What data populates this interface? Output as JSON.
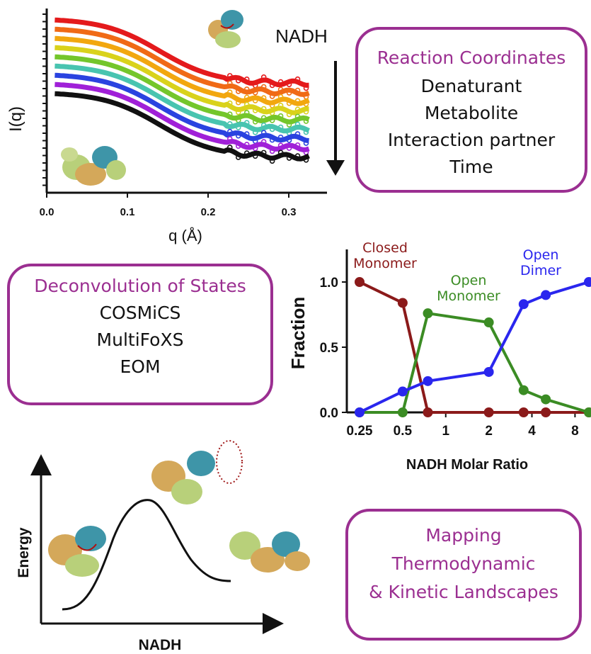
{
  "colors": {
    "accent": "#9b2f91",
    "red": "#e41a1c",
    "orange": "#f06a16",
    "amber": "#f2a70f",
    "yellow": "#d9d21b",
    "lime": "#74c62b",
    "teal": "#48c4b0",
    "blue": "#2a43e0",
    "violet": "#a020d8",
    "black": "#111111",
    "closed_monomer": "#8b1a1a",
    "open_monomer": "#3b8c24",
    "open_dimer": "#2a26ee",
    "protein_tan": "#d4a85a",
    "protein_green": "#b8d07a",
    "protein_teal": "#3e95a8"
  },
  "saxs_panel": {
    "ylabel": "I(q)",
    "xlabel": "q (Å)",
    "x_ticks": [
      "0.0",
      "0.1",
      "0.2",
      "0.3"
    ],
    "arrow_label": "NADH"
  },
  "reaction_box": {
    "title": "Reaction Coordinates",
    "items": [
      "Denaturant",
      "Metabolite",
      "Interaction partner",
      "Time"
    ]
  },
  "deconv_box": {
    "title": "Deconvolution of States",
    "items": [
      "COSMiCS",
      "MultiFoXS",
      "EOM"
    ]
  },
  "mapping_box": {
    "lines": [
      "Mapping",
      "Thermodynamic",
      "& Kinetic Landscapes"
    ]
  },
  "energy_panel": {
    "ylabel": "Energy",
    "xlabel": "NADH"
  },
  "chart_data": {
    "type": "line",
    "xlabel": "NADH Molar Ratio",
    "ylabel": "Fraction",
    "x_scale": "log",
    "x_ticks": [
      "0.25",
      "0.5",
      "1",
      "2",
      "4",
      "8"
    ],
    "y_ticks": [
      "0.0",
      "0.5",
      "1.0"
    ],
    "ylim": [
      0,
      1
    ],
    "x": [
      0.25,
      0.5,
      0.75,
      2,
      3.5,
      5,
      10
    ],
    "series": [
      {
        "name": "Closed Monomer",
        "label_lines": [
          "Closed",
          "Monomer"
        ],
        "values": [
          1.0,
          0.84,
          0.0,
          0.0,
          0.0,
          0.0,
          0.0
        ]
      },
      {
        "name": "Open Monomer",
        "label_lines": [
          "Open",
          "Monomer"
        ],
        "values": [
          0.0,
          0.0,
          0.76,
          0.69,
          0.17,
          0.1,
          0.0
        ]
      },
      {
        "name": "Open Dimer",
        "label_lines": [
          "Open",
          "Dimer"
        ],
        "values": [
          0.0,
          0.16,
          0.24,
          0.31,
          0.83,
          0.9,
          1.0
        ]
      }
    ]
  }
}
